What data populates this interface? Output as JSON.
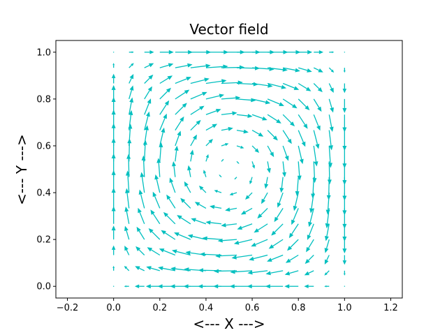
{
  "chart_data": {
    "type": "quiver",
    "title": "Vector field",
    "xlabel": "<--- X --->",
    "ylabel": "<--- Y --->",
    "xlim": [
      -0.25,
      1.25
    ],
    "ylim": [
      -0.05,
      1.05
    ],
    "xticks": [
      -0.2,
      0.0,
      0.2,
      0.4,
      0.6,
      0.8,
      1.0,
      1.2
    ],
    "yticks": [
      0.0,
      0.2,
      0.4,
      0.6,
      0.8,
      1.0
    ],
    "xtick_labels": [
      "−0.2",
      "0.0",
      "0.2",
      "0.4",
      "0.6",
      "0.8",
      "1.0",
      "1.2"
    ],
    "ytick_labels": [
      "0.0",
      "0.2",
      "0.4",
      "0.6",
      "0.8",
      "1.0"
    ],
    "grid": false,
    "arrow_color": "#00bfbf",
    "field": {
      "x_range": [
        0,
        1
      ],
      "y_range": [
        0,
        1
      ],
      "n": 16,
      "u": "-sin(pi*x)*cos(pi*y)",
      "v": "cos(pi*x)*sin(pi*y)"
    }
  }
}
